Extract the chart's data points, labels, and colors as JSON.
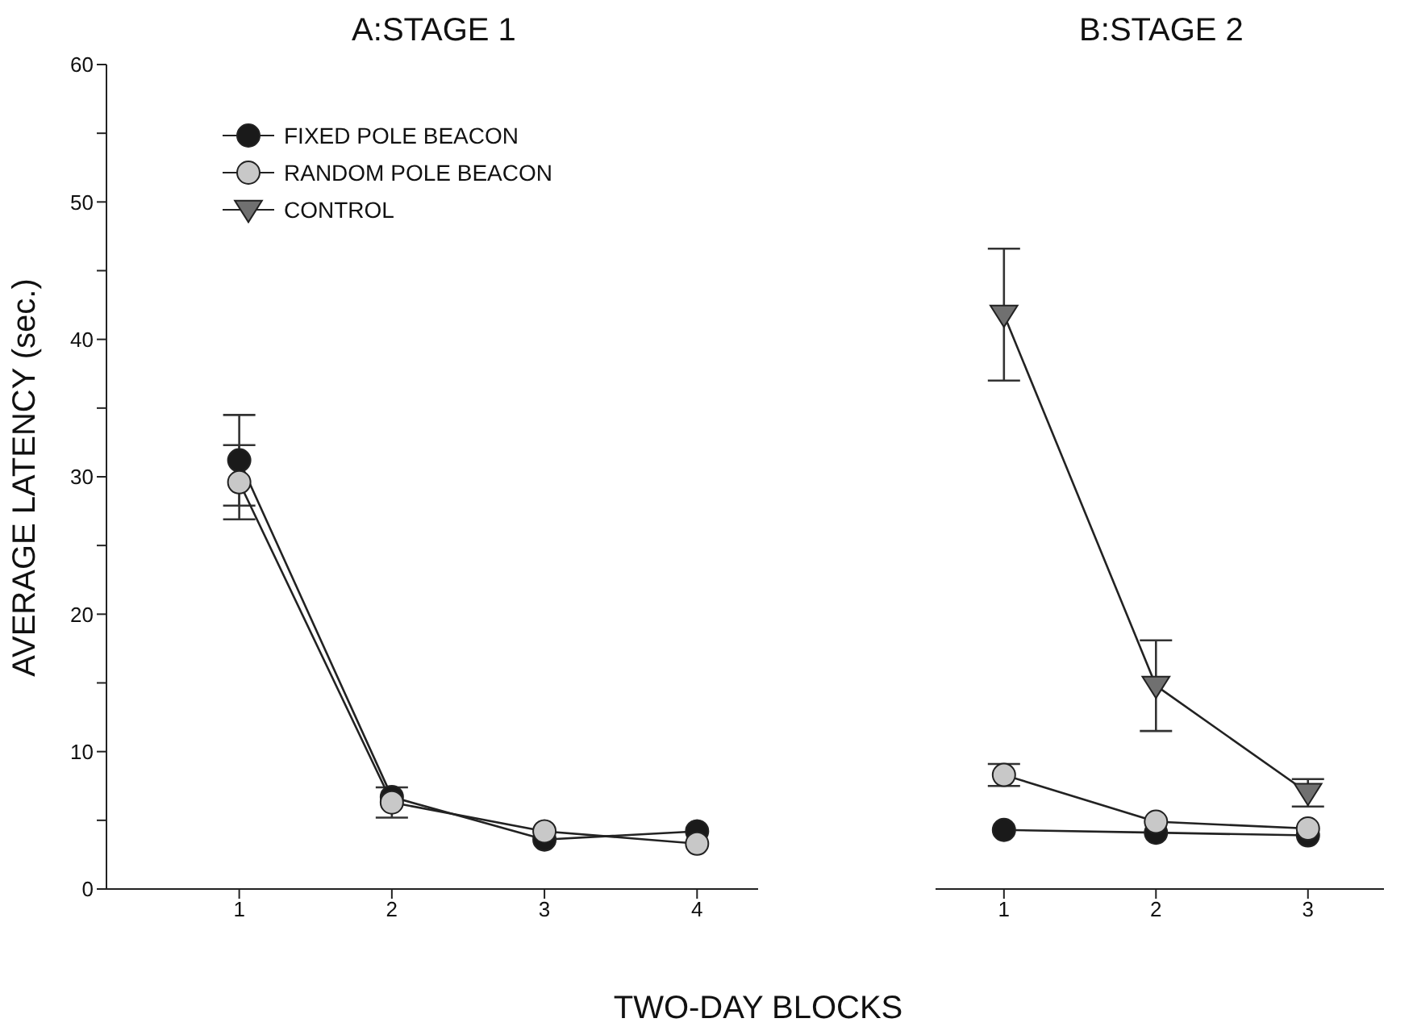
{
  "chart_data": [
    {
      "type": "line",
      "title": "A:STAGE 1",
      "xlabel": "TWO-DAY BLOCKS",
      "ylabel": "AVERAGE LATENCY (sec.)",
      "x": [
        1,
        2,
        3,
        4
      ],
      "xlim": [
        0.13,
        4.4
      ],
      "xticks": [
        1,
        2,
        3,
        4
      ],
      "ylim": [
        0,
        60
      ],
      "yticks": [
        0,
        {
          "value": 5,
          "label": null
        },
        10,
        {
          "value": 15,
          "label": null
        },
        20,
        {
          "value": 25,
          "label": null
        },
        30,
        {
          "value": 35,
          "label": null
        },
        40,
        {
          "value": 45,
          "label": null
        },
        50,
        {
          "value": 55,
          "label": null
        },
        60
      ],
      "legend": "top left",
      "grid": false,
      "line_style": "solid",
      "series": [
        {
          "name": "FIXED POLE BEACON",
          "color": "#1a1a1a",
          "marker": "circle",
          "values": [
            31.2,
            6.7,
            3.6,
            4.2
          ],
          "errors": [
            3.3,
            null,
            null,
            null
          ]
        },
        {
          "name": "RANDOM POLE BEACON",
          "color": "#c8c8c8",
          "marker": "circle",
          "values": [
            29.6,
            6.3,
            4.2,
            3.3
          ],
          "errors": [
            2.7,
            1.1,
            null,
            null
          ]
        },
        {
          "name": "CONTROL",
          "color": "#707070",
          "marker": "triangle",
          "values": [
            null,
            null,
            null,
            null
          ]
        }
      ]
    },
    {
      "type": "line",
      "title": "B:STAGE 2",
      "x": [
        1,
        2,
        3
      ],
      "xlim": [
        0.55,
        3.5
      ],
      "xticks": [
        1,
        2,
        3
      ],
      "ylim": [
        0,
        60
      ],
      "tick_labels": "x",
      "grid": false,
      "line_style": "solid",
      "series": [
        {
          "color": "#1a1a1a",
          "marker": "circle",
          "values": [
            4.3,
            4.1,
            3.9
          ]
        },
        {
          "color": "#c8c8c8",
          "marker": "circle",
          "values": [
            8.3,
            4.9,
            4.4
          ],
          "errors": [
            0.8,
            null,
            null
          ]
        },
        {
          "color": "#707070",
          "marker": "triangle",
          "values": [
            41.8,
            14.8,
            7.0
          ],
          "errors": [
            4.8,
            3.3,
            1.0
          ]
        }
      ]
    }
  ]
}
